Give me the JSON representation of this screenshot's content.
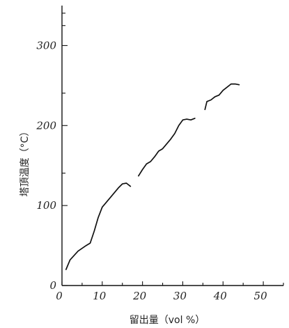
{
  "chart_data": {
    "type": "line",
    "title": "",
    "xlabel": "留出量（vol %）",
    "ylabel": "塔頂温度（°C）",
    "xlim": [
      0,
      55
    ],
    "ylim": [
      0,
      350
    ],
    "x_ticks": [
      0,
      10,
      20,
      30,
      40,
      50
    ],
    "y_ticks": [
      0,
      100,
      200,
      300
    ],
    "x_tick_labels": [
      "0",
      "10",
      "20",
      "30",
      "40",
      "50"
    ],
    "y_tick_labels": [
      "0",
      "100",
      "200",
      "300"
    ],
    "grid": false,
    "legend": "none",
    "series": [
      {
        "segments": [
          {
            "x": [
              1,
              2,
              4,
              6,
              7,
              8,
              9,
              10,
              12,
              14,
              15,
              16,
              17
            ],
            "y": [
              20,
              32,
              43,
              50,
              53,
              68,
              85,
              98,
              110,
              122,
              127,
              128,
              124
            ]
          },
          {
            "x": [
              19,
              20,
              21,
              22,
              23,
              24,
              25,
              26,
              27,
              28,
              29,
              30,
              31,
              32,
              33
            ],
            "y": [
              137,
              145,
              152,
              155,
              161,
              168,
              171,
              177,
              183,
              190,
              200,
              207,
              208,
              207,
              209
            ]
          },
          {
            "x": [
              35.5,
              36,
              37,
              38,
              39,
              40,
              41,
              42,
              43,
              44
            ],
            "y": [
              220,
              230,
              232,
              236,
              238,
              244,
              248,
              252,
              252,
              251
            ]
          }
        ]
      }
    ]
  }
}
